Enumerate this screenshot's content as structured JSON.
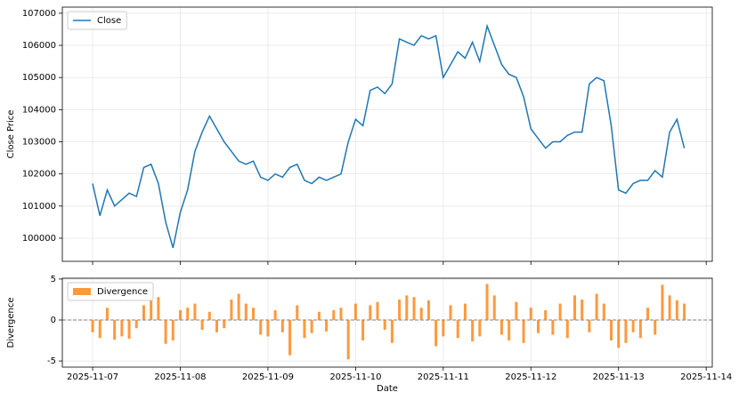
{
  "chart_data": [
    {
      "type": "line",
      "ylabel": "Close Price",
      "x": [
        "2025-11-07T00:00",
        "2025-11-07T02:00",
        "2025-11-07T04:00",
        "2025-11-07T06:00",
        "2025-11-07T08:00",
        "2025-11-07T10:00",
        "2025-11-07T12:00",
        "2025-11-07T14:00",
        "2025-11-07T16:00",
        "2025-11-07T18:00",
        "2025-11-07T20:00",
        "2025-11-07T22:00",
        "2025-11-08T00:00",
        "2025-11-08T02:00",
        "2025-11-08T04:00",
        "2025-11-08T06:00",
        "2025-11-08T08:00",
        "2025-11-08T10:00",
        "2025-11-08T12:00",
        "2025-11-08T14:00",
        "2025-11-08T16:00",
        "2025-11-08T18:00",
        "2025-11-08T20:00",
        "2025-11-08T22:00",
        "2025-11-09T00:00",
        "2025-11-09T02:00",
        "2025-11-09T04:00",
        "2025-11-09T06:00",
        "2025-11-09T08:00",
        "2025-11-09T10:00",
        "2025-11-09T12:00",
        "2025-11-09T14:00",
        "2025-11-09T16:00",
        "2025-11-09T18:00",
        "2025-11-09T20:00",
        "2025-11-09T22:00",
        "2025-11-10T00:00",
        "2025-11-10T02:00",
        "2025-11-10T04:00",
        "2025-11-10T06:00",
        "2025-11-10T08:00",
        "2025-11-10T10:00",
        "2025-11-10T12:00",
        "2025-11-10T14:00",
        "2025-11-10T16:00",
        "2025-11-10T18:00",
        "2025-11-10T20:00",
        "2025-11-10T22:00",
        "2025-11-11T00:00",
        "2025-11-11T02:00",
        "2025-11-11T04:00",
        "2025-11-11T06:00",
        "2025-11-11T08:00",
        "2025-11-11T10:00",
        "2025-11-11T12:00",
        "2025-11-11T14:00",
        "2025-11-11T16:00",
        "2025-11-11T18:00",
        "2025-11-11T20:00",
        "2025-11-11T22:00",
        "2025-11-12T00:00",
        "2025-11-12T02:00",
        "2025-11-12T04:00",
        "2025-11-12T06:00",
        "2025-11-12T08:00",
        "2025-11-12T10:00",
        "2025-11-12T12:00",
        "2025-11-12T14:00",
        "2025-11-12T16:00",
        "2025-11-12T18:00",
        "2025-11-12T20:00",
        "2025-11-12T22:00",
        "2025-11-13T00:00",
        "2025-11-13T02:00",
        "2025-11-13T04:00",
        "2025-11-13T06:00",
        "2025-11-13T08:00",
        "2025-11-13T10:00",
        "2025-11-13T12:00",
        "2025-11-13T14:00",
        "2025-11-13T16:00",
        "2025-11-13T18:00"
      ],
      "series": [
        {
          "name": "Close",
          "color": "#1f77b4",
          "values": [
            101700,
            100700,
            101500,
            101000,
            101200,
            101400,
            101300,
            102200,
            102300,
            101700,
            100500,
            99700,
            100800,
            101500,
            102700,
            103300,
            103800,
            103400,
            103000,
            102700,
            102400,
            102300,
            102400,
            101900,
            101800,
            102000,
            101900,
            102200,
            102300,
            101800,
            101700,
            101900,
            101800,
            101900,
            102000,
            103000,
            103700,
            103500,
            104600,
            104700,
            104500,
            104800,
            106200,
            106100,
            106000,
            106300,
            106200,
            106300,
            105000,
            105400,
            105800,
            105600,
            106100,
            105500,
            106600,
            106000,
            105400,
            105100,
            105000,
            104400,
            103400,
            103100,
            102800,
            103000,
            103000,
            103200,
            103300,
            103300,
            104800,
            105000,
            104900,
            103500,
            101500,
            101400,
            101700,
            101800,
            101800,
            102100,
            101900,
            103300,
            103700,
            102800
          ]
        }
      ],
      "xlim": [
        "2025-11-06T15:42",
        "2025-11-14T01:40"
      ],
      "ylim": [
        99280,
        107190
      ],
      "yticks": [
        100000,
        101000,
        102000,
        103000,
        104000,
        105000,
        106000,
        107000
      ],
      "grid": true,
      "legend": "upper left"
    },
    {
      "type": "bar",
      "xlabel": "Date",
      "ylabel": "Divergence",
      "x": [
        "2025-11-07T00:00",
        "2025-11-07T02:00",
        "2025-11-07T04:00",
        "2025-11-07T06:00",
        "2025-11-07T08:00",
        "2025-11-07T10:00",
        "2025-11-07T12:00",
        "2025-11-07T14:00",
        "2025-11-07T16:00",
        "2025-11-07T18:00",
        "2025-11-07T20:00",
        "2025-11-07T22:00",
        "2025-11-08T00:00",
        "2025-11-08T02:00",
        "2025-11-08T04:00",
        "2025-11-08T06:00",
        "2025-11-08T08:00",
        "2025-11-08T10:00",
        "2025-11-08T12:00",
        "2025-11-08T14:00",
        "2025-11-08T16:00",
        "2025-11-08T18:00",
        "2025-11-08T20:00",
        "2025-11-08T22:00",
        "2025-11-09T00:00",
        "2025-11-09T02:00",
        "2025-11-09T04:00",
        "2025-11-09T06:00",
        "2025-11-09T08:00",
        "2025-11-09T10:00",
        "2025-11-09T12:00",
        "2025-11-09T14:00",
        "2025-11-09T16:00",
        "2025-11-09T18:00",
        "2025-11-09T20:00",
        "2025-11-09T22:00",
        "2025-11-10T00:00",
        "2025-11-10T02:00",
        "2025-11-10T04:00",
        "2025-11-10T06:00",
        "2025-11-10T08:00",
        "2025-11-10T10:00",
        "2025-11-10T12:00",
        "2025-11-10T14:00",
        "2025-11-10T16:00",
        "2025-11-10T18:00",
        "2025-11-10T20:00",
        "2025-11-10T22:00",
        "2025-11-11T00:00",
        "2025-11-11T02:00",
        "2025-11-11T04:00",
        "2025-11-11T06:00",
        "2025-11-11T08:00",
        "2025-11-11T10:00",
        "2025-11-11T12:00",
        "2025-11-11T14:00",
        "2025-11-11T16:00",
        "2025-11-11T18:00",
        "2025-11-11T20:00",
        "2025-11-11T22:00",
        "2025-11-12T00:00",
        "2025-11-12T02:00",
        "2025-11-12T04:00",
        "2025-11-12T06:00",
        "2025-11-12T08:00",
        "2025-11-12T10:00",
        "2025-11-12T12:00",
        "2025-11-12T14:00",
        "2025-11-12T16:00",
        "2025-11-12T18:00",
        "2025-11-12T20:00",
        "2025-11-12T22:00",
        "2025-11-13T00:00",
        "2025-11-13T02:00",
        "2025-11-13T04:00",
        "2025-11-13T06:00",
        "2025-11-13T08:00",
        "2025-11-13T10:00",
        "2025-11-13T12:00",
        "2025-11-13T14:00",
        "2025-11-13T16:00",
        "2025-11-13T18:00"
      ],
      "series": [
        {
          "name": "Divergence",
          "color": "#ff7f0e",
          "values": [
            -1.5,
            -2.2,
            1.5,
            -2.4,
            -2.0,
            -2.3,
            -1.0,
            1.8,
            2.5,
            2.8,
            -2.9,
            -2.5,
            1.2,
            1.5,
            2.0,
            -1.2,
            1.0,
            -1.5,
            -1.0,
            2.5,
            3.2,
            2.0,
            1.5,
            -1.8,
            -2.0,
            1.2,
            -1.5,
            -4.3,
            1.8,
            -2.2,
            -1.6,
            1.0,
            -1.4,
            1.2,
            1.5,
            -4.8,
            2.0,
            -2.5,
            1.8,
            2.2,
            -1.2,
            -2.8,
            2.5,
            3.0,
            2.8,
            1.5,
            2.4,
            -3.2,
            -2.0,
            1.8,
            -2.2,
            2.0,
            -2.6,
            -2.0,
            4.4,
            3.0,
            -1.8,
            -2.5,
            2.2,
            -2.8,
            1.5,
            -1.6,
            1.2,
            -1.8,
            2.0,
            -2.2,
            3.0,
            2.5,
            -1.5,
            3.2,
            2.0,
            -2.5,
            -3.4,
            -2.8,
            -1.5,
            -2.2,
            1.5,
            -1.8,
            4.3,
            3.0,
            2.4,
            2.0
          ]
        }
      ],
      "xlim": [
        "2025-11-06T15:42",
        "2025-11-14T01:40"
      ],
      "xticks": [
        "2025-11-07",
        "2025-11-08",
        "2025-11-09",
        "2025-11-10",
        "2025-11-11",
        "2025-11-12",
        "2025-11-13",
        "2025-11-14"
      ],
      "ylim": [
        -5.75,
        5.1
      ],
      "yticks": [
        -5,
        0,
        5
      ],
      "grid": true,
      "zero_line": true,
      "legend": "upper left"
    }
  ]
}
